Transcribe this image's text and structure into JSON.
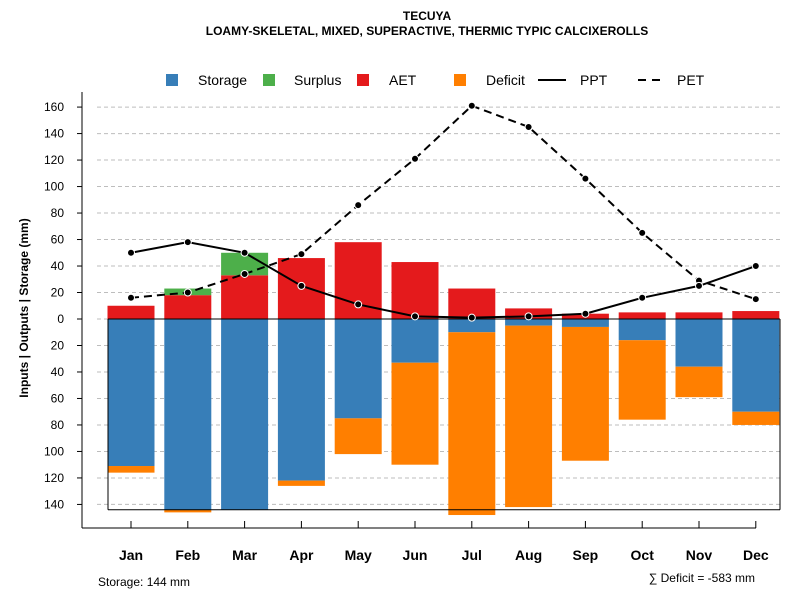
{
  "chart_data": {
    "type": "bar",
    "title": "TECUYA",
    "subtitle": "LOAMY-SKELETAL, MIXED, SUPERACTIVE, THERMIC TYPIC CALCIXEROLLS",
    "ylabel": "Inputs | Outputs | Storage    (mm)",
    "xlabel": "",
    "ylim": [
      -145,
      165
    ],
    "yticks": [
      160,
      140,
      120,
      100,
      80,
      60,
      40,
      20,
      0,
      -20,
      -40,
      -60,
      -80,
      -100,
      -120,
      -140
    ],
    "ytick_labels": [
      "160",
      "140",
      "120",
      "100",
      "80",
      "60",
      "40",
      "20",
      "0",
      "20",
      "40",
      "60",
      "80",
      "100",
      "120",
      "140"
    ],
    "categories": [
      "Jan",
      "Feb",
      "Mar",
      "Apr",
      "May",
      "Jun",
      "Jul",
      "Aug",
      "Sep",
      "Oct",
      "Nov",
      "Dec"
    ],
    "series": [
      {
        "name": "AET",
        "color": "#E41A1C",
        "values": [
          10,
          18,
          33,
          46,
          58,
          43,
          23,
          8,
          4,
          5,
          5,
          6
        ]
      },
      {
        "name": "Surplus",
        "color": "#4DAF4A",
        "values": [
          0,
          5,
          17,
          0,
          0,
          0,
          0,
          0,
          0,
          0,
          0,
          0
        ]
      },
      {
        "name": "Storage",
        "color": "#377EB8",
        "values": [
          -111,
          -144,
          -144,
          -122,
          -75,
          -33,
          -10,
          -5,
          -6,
          -16,
          -36,
          -70
        ]
      },
      {
        "name": "Deficit",
        "color": "#FF7F00",
        "values": [
          -5,
          -2,
          0,
          -4,
          -27,
          -77,
          -138,
          -137,
          -101,
          -60,
          -23,
          -10
        ]
      },
      {
        "name": "PPT",
        "color": "#000000",
        "style": "solid",
        "values": [
          50,
          58,
          50,
          25,
          11,
          2,
          1,
          2,
          4,
          16,
          25,
          40
        ]
      },
      {
        "name": "PET",
        "color": "#000000",
        "style": "dashed",
        "values": [
          16,
          20,
          34,
          49,
          86,
          121,
          161,
          145,
          106,
          65,
          29,
          15
        ]
      }
    ],
    "legend": [
      "Storage",
      "Surplus",
      "AET",
      "Deficit",
      "PPT",
      "PET"
    ],
    "legend_position": "top",
    "grid": true,
    "storage_line": -144,
    "annotations": {
      "storage": "Storage: 144 mm",
      "deficit": "∑ Deficit = -583 mm"
    }
  }
}
